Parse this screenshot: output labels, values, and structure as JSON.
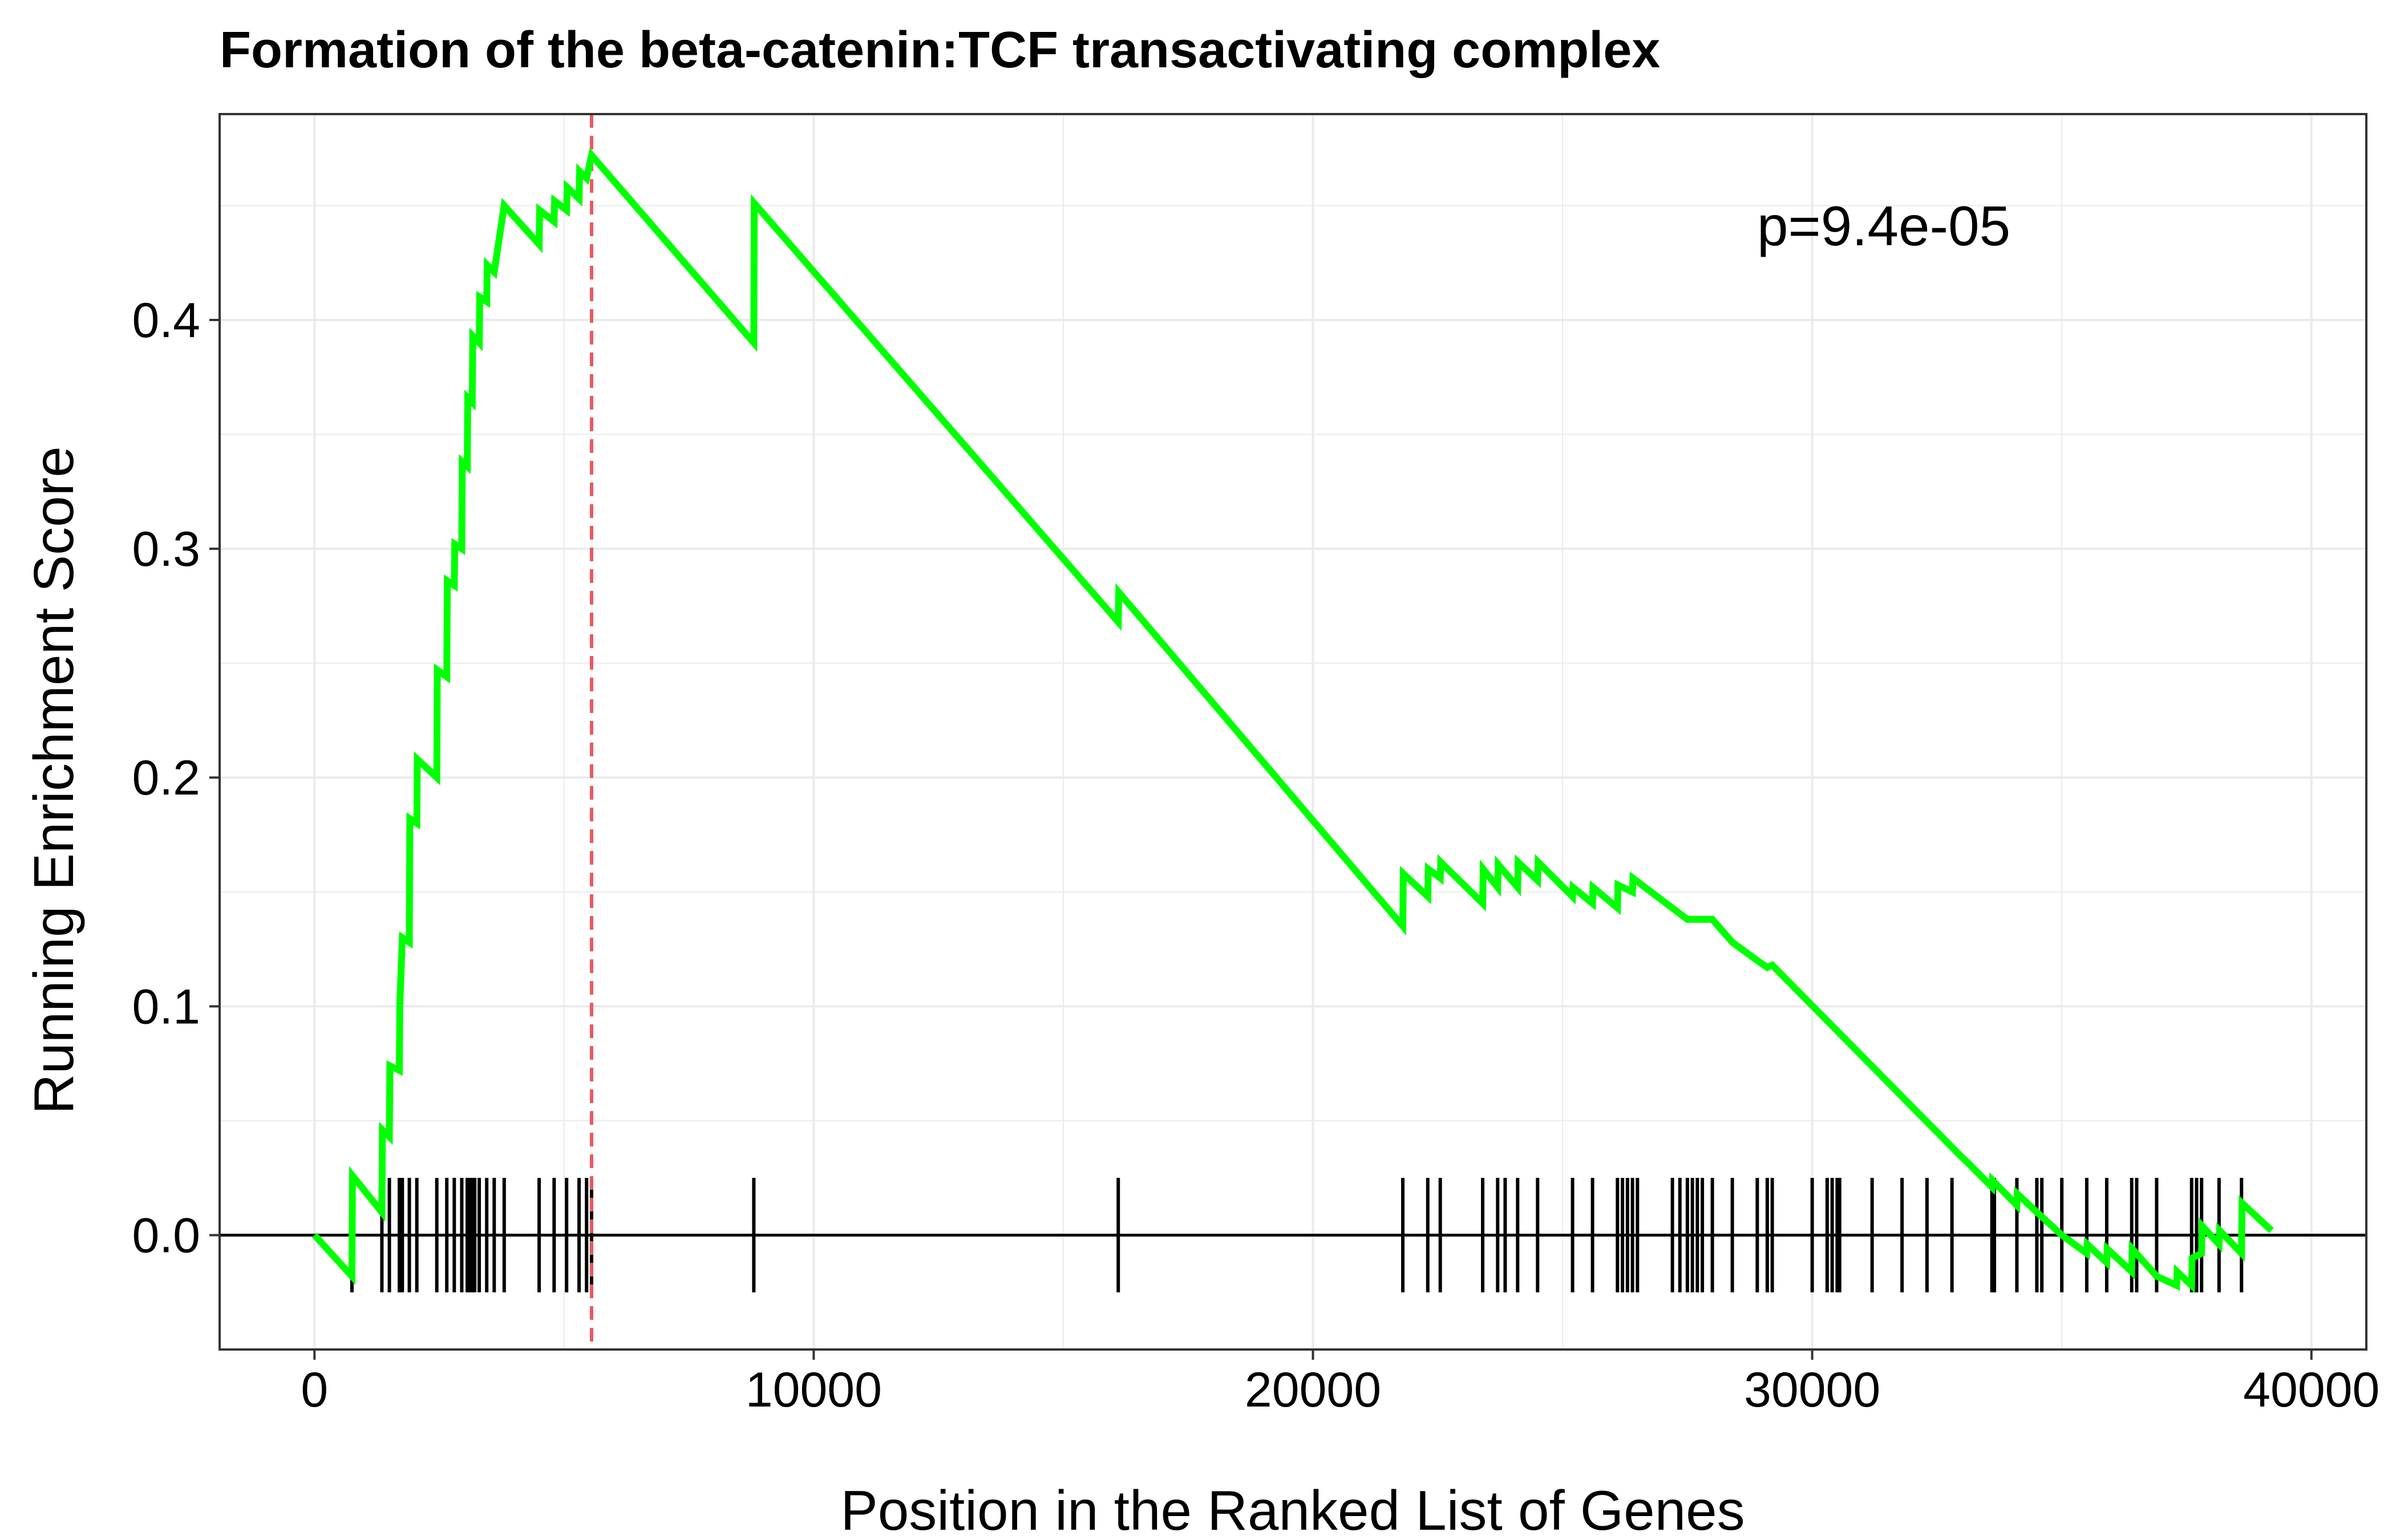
{
  "chart_data": {
    "type": "line",
    "title": "Formation of the beta-catenin:TCF transactivating complex",
    "xlabel": "Position in the Ranked List of Genes",
    "ylabel": "Running Enrichment Score",
    "xlim": [
      -1900,
      41100
    ],
    "ylim": [
      -0.05,
      0.49
    ],
    "xticks": [
      0,
      10000,
      20000,
      30000,
      40000
    ],
    "yticks": [
      0.0,
      0.1,
      0.2,
      0.3,
      0.4
    ],
    "xtick_labels": [
      "0",
      "10000",
      "20000",
      "30000",
      "40000"
    ],
    "ytick_labels": [
      "0.0",
      "0.1",
      "0.2",
      "0.3",
      "0.4"
    ],
    "grid": true,
    "annotation": "p=9.4e-05",
    "peak_line_x": 5550,
    "colors": {
      "line": "#00ff00",
      "peak_line": "#e8595f",
      "hits": "#000000",
      "grid": "#ebebeb"
    },
    "series": [
      {
        "points": [
          [
            0,
            0.0
          ],
          [
            750,
            -0.018
          ],
          [
            760,
            0.026
          ],
          [
            1350,
            0.01
          ],
          [
            1360,
            0.046
          ],
          [
            1500,
            0.043
          ],
          [
            1510,
            0.074
          ],
          [
            1700,
            0.072
          ],
          [
            1710,
            0.101
          ],
          [
            1760,
            0.13
          ],
          [
            1900,
            0.128
          ],
          [
            1910,
            0.182
          ],
          [
            2050,
            0.18
          ],
          [
            2060,
            0.208
          ],
          [
            2450,
            0.2
          ],
          [
            2460,
            0.247
          ],
          [
            2650,
            0.244
          ],
          [
            2660,
            0.286
          ],
          [
            2800,
            0.284
          ],
          [
            2810,
            0.302
          ],
          [
            2950,
            0.3
          ],
          [
            2960,
            0.338
          ],
          [
            3060,
            0.336
          ],
          [
            3070,
            0.366
          ],
          [
            3160,
            0.364
          ],
          [
            3170,
            0.393
          ],
          [
            3300,
            0.39
          ],
          [
            3310,
            0.41
          ],
          [
            3450,
            0.408
          ],
          [
            3460,
            0.424
          ],
          [
            3600,
            0.421
          ],
          [
            3800,
            0.45
          ],
          [
            4500,
            0.433
          ],
          [
            4510,
            0.448
          ],
          [
            4800,
            0.443
          ],
          [
            4810,
            0.452
          ],
          [
            5050,
            0.448
          ],
          [
            5060,
            0.458
          ],
          [
            5300,
            0.453
          ],
          [
            5310,
            0.465
          ],
          [
            5450,
            0.462
          ],
          [
            5550,
            0.472
          ],
          [
            8800,
            0.39
          ],
          [
            8810,
            0.451
          ],
          [
            16100,
            0.268
          ],
          [
            16110,
            0.281
          ],
          [
            21800,
            0.135
          ],
          [
            21810,
            0.158
          ],
          [
            22300,
            0.148
          ],
          [
            22310,
            0.16
          ],
          [
            22550,
            0.156
          ],
          [
            22560,
            0.163
          ],
          [
            23400,
            0.145
          ],
          [
            23410,
            0.16
          ],
          [
            23700,
            0.152
          ],
          [
            23710,
            0.162
          ],
          [
            24100,
            0.152
          ],
          [
            24110,
            0.163
          ],
          [
            24500,
            0.155
          ],
          [
            24510,
            0.163
          ],
          [
            25200,
            0.148
          ],
          [
            25210,
            0.152
          ],
          [
            25600,
            0.145
          ],
          [
            25610,
            0.152
          ],
          [
            26100,
            0.143
          ],
          [
            26110,
            0.153
          ],
          [
            26400,
            0.15
          ],
          [
            26410,
            0.156
          ],
          [
            27500,
            0.138
          ],
          [
            28000,
            0.138
          ],
          [
            28400,
            0.128
          ],
          [
            28900,
            0.12
          ],
          [
            29100,
            0.117
          ],
          [
            29200,
            0.118
          ],
          [
            33000,
            0.034
          ],
          [
            33100,
            0.032
          ],
          [
            33600,
            0.021
          ],
          [
            33610,
            0.024
          ],
          [
            34100,
            0.013
          ],
          [
            34110,
            0.018
          ],
          [
            34500,
            0.01
          ],
          [
            35000,
            0.0
          ],
          [
            35500,
            -0.008
          ],
          [
            35510,
            -0.004
          ],
          [
            35900,
            -0.012
          ],
          [
            35910,
            -0.006
          ],
          [
            36400,
            -0.016
          ],
          [
            36410,
            -0.006
          ],
          [
            36900,
            -0.018
          ],
          [
            37300,
            -0.022
          ],
          [
            37310,
            -0.016
          ],
          [
            37600,
            -0.022
          ],
          [
            37610,
            -0.01
          ],
          [
            37800,
            -0.008
          ],
          [
            37810,
            0.004
          ],
          [
            38150,
            -0.004
          ],
          [
            38160,
            0.002
          ],
          [
            38600,
            -0.008
          ],
          [
            38610,
            0.014
          ],
          [
            39200,
            0.002
          ]
        ]
      }
    ],
    "hits": [
      750,
      1350,
      1500,
      1700,
      1760,
      1900,
      2050,
      2450,
      2650,
      2800,
      2950,
      3060,
      3100,
      3160,
      3210,
      3300,
      3450,
      3600,
      3800,
      4500,
      4800,
      5050,
      5300,
      5450,
      5550,
      8800,
      16100,
      21800,
      22300,
      22550,
      23400,
      23700,
      23850,
      24100,
      24500,
      25200,
      25600,
      26100,
      26200,
      26300,
      26400,
      26500,
      27200,
      27350,
      27500,
      27600,
      27700,
      27800,
      28000,
      28400,
      28900,
      29100,
      29200,
      30000,
      30300,
      30400,
      30500,
      30550,
      31200,
      31800,
      32300,
      32800,
      33600,
      33650,
      34100,
      34500,
      34600,
      35000,
      35500,
      35900,
      36400,
      36500,
      36900,
      37600,
      37700,
      37800,
      38150,
      38600
    ]
  }
}
